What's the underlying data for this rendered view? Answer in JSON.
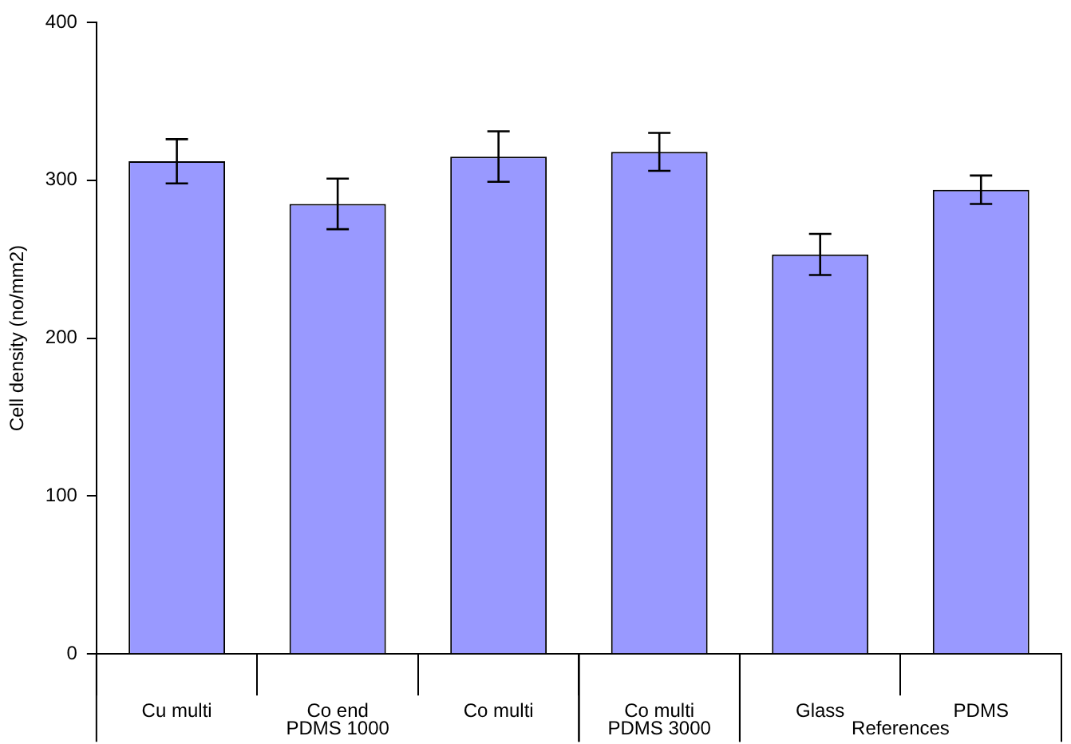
{
  "chart_data": {
    "type": "bar",
    "ylabel": "Cell density (no/mm2)",
    "categories": [
      "Cu multi",
      "Co end",
      "Co multi",
      "Co multi",
      "Glass",
      "PDMS"
    ],
    "values": [
      312,
      285,
      315,
      318,
      253,
      294
    ],
    "errors": [
      14,
      16,
      16,
      12,
      13,
      9
    ],
    "color": "#9999ff",
    "ylim": [
      0,
      400
    ],
    "yticks": [
      0,
      100,
      200,
      300,
      400
    ],
    "grid": false,
    "legend": false,
    "annotations": [
      "PDMS 1000",
      "PDMS 3000",
      "References"
    ]
  }
}
